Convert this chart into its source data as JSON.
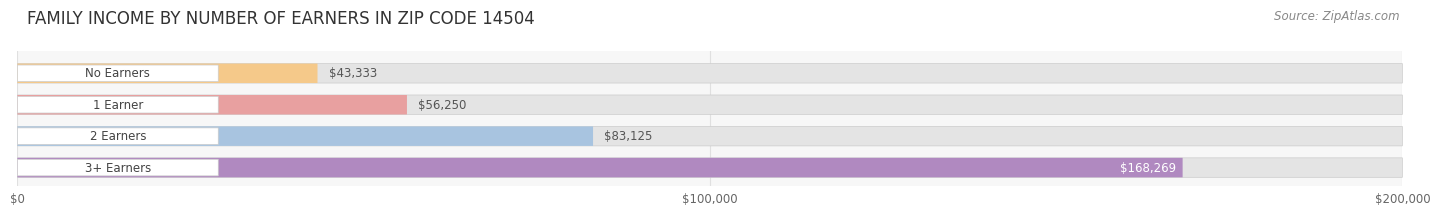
{
  "title": "FAMILY INCOME BY NUMBER OF EARNERS IN ZIP CODE 14504",
  "source": "Source: ZipAtlas.com",
  "categories": [
    "No Earners",
    "1 Earner",
    "2 Earners",
    "3+ Earners"
  ],
  "values": [
    43333,
    56250,
    83125,
    168269
  ],
  "labels": [
    "$43,333",
    "$56,250",
    "$83,125",
    "$168,269"
  ],
  "bar_colors": [
    "#f5c98a",
    "#e8a0a0",
    "#a8c4e0",
    "#b089c0"
  ],
  "bar_bg_color": "#e4e4e4",
  "label_text_color": "#444444",
  "value_label_colors": [
    "#555555",
    "#555555",
    "#555555",
    "#ffffff"
  ],
  "xlim": [
    0,
    200000
  ],
  "xticks": [
    0,
    100000,
    200000
  ],
  "xtick_labels": [
    "$0",
    "$100,000",
    "$200,000"
  ],
  "title_fontsize": 12,
  "source_fontsize": 8.5,
  "bar_height": 0.62,
  "background_color": "#ffffff",
  "plot_bg_color": "#f7f7f7",
  "grid_color": "#e0e0e0"
}
